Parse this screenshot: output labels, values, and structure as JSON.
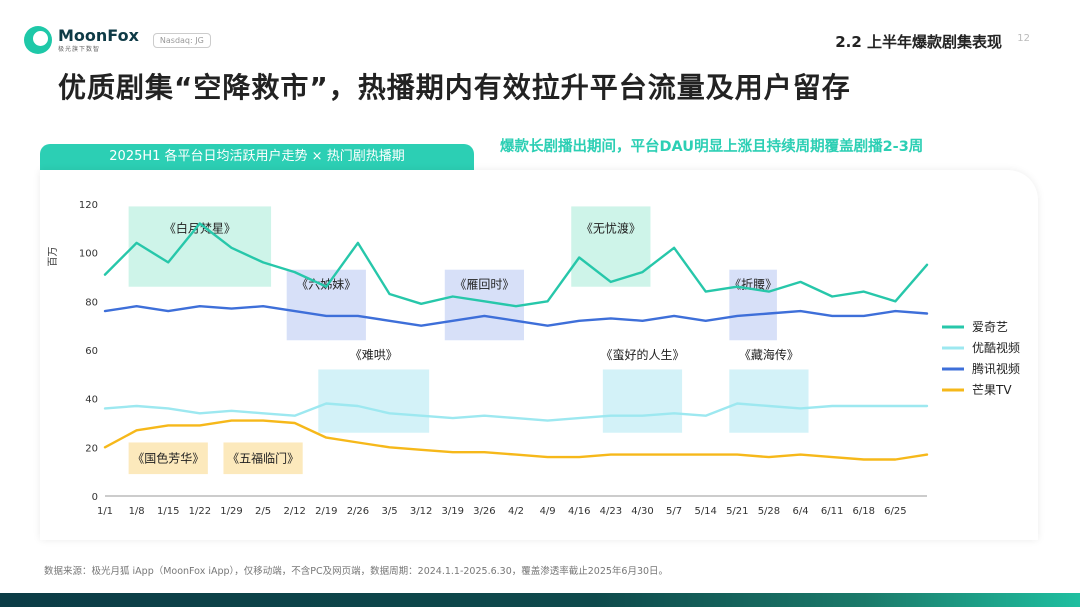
{
  "header": {
    "logo_name": "MoonFox",
    "logo_slogan": "极光旗下数智",
    "nasdaq": "Nasdaq: JG",
    "section_title": "2.2 上半年爆款剧集表现",
    "page_num": "12"
  },
  "main_title": "优质剧集“空降救市”，热播期内有效拉升平台流量及用户留存",
  "chart_tab_title": "2025H1 各平台日均活跃用户走势 × 热门剧热播期",
  "chart_note": "爆款长剧播出期间，平台DAU明显上涨且持续周期覆盖剧播2-3周",
  "source": "数据来源：极光月狐 iApp（MoonFox iApp），仅移动端，不含PC及网页端，数据周期：2024.1.1-2025.6.30，覆盖渗透率截止2025年6月30日。",
  "colors": {
    "iqiyi": "#27c7aa",
    "youku": "#9de8f0",
    "tencent": "#3e6fd9",
    "mango": "#f6b81a",
    "accent": "#2ccfb4"
  },
  "chart_data": {
    "type": "line",
    "ylabel": "百万",
    "ylim": [
      0,
      120
    ],
    "yticks": [
      0,
      20,
      40,
      60,
      80,
      100,
      120
    ],
    "x": [
      "1/1",
      "1/8",
      "1/15",
      "1/22",
      "1/29",
      "2/5",
      "2/12",
      "2/19",
      "2/26",
      "3/5",
      "3/12",
      "3/19",
      "3/26",
      "4/2",
      "4/9",
      "4/16",
      "4/23",
      "4/30",
      "5/7",
      "5/14",
      "5/21",
      "5/28",
      "6/4",
      "6/11",
      "6/18",
      "6/25",
      "6/30"
    ],
    "xticks": [
      "1/1",
      "1/8",
      "1/15",
      "1/22",
      "1/29",
      "2/5",
      "2/12",
      "2/19",
      "2/26",
      "3/5",
      "3/12",
      "3/19",
      "3/26",
      "4/2",
      "4/9",
      "4/16",
      "4/23",
      "4/30",
      "5/7",
      "5/14",
      "5/21",
      "5/28",
      "6/4",
      "6/11",
      "6/18",
      "6/25"
    ],
    "legend_position": "right",
    "series": [
      {
        "name": "爱奇艺",
        "values": [
          91,
          104,
          96,
          112,
          102,
          96,
          92,
          86,
          104,
          83,
          79,
          82,
          80,
          78,
          80,
          98,
          88,
          92,
          102,
          84,
          86,
          84,
          88,
          82,
          84,
          80,
          95
        ]
      },
      {
        "name": "优酷视频",
        "values": [
          36,
          37,
          36,
          34,
          35,
          34,
          33,
          38,
          37,
          34,
          33,
          32,
          33,
          32,
          31,
          32,
          33,
          33,
          34,
          33,
          38,
          37,
          36,
          37,
          37,
          37,
          37
        ]
      },
      {
        "name": "腾讯视频",
        "values": [
          76,
          78,
          76,
          78,
          77,
          78,
          76,
          74,
          74,
          72,
          70,
          72,
          74,
          72,
          70,
          72,
          73,
          72,
          74,
          72,
          74,
          75,
          76,
          74,
          74,
          76,
          75
        ]
      },
      {
        "name": "芒果TV",
        "values": [
          20,
          27,
          29,
          29,
          31,
          31,
          30,
          24,
          22,
          20,
          19,
          18,
          18,
          17,
          16,
          16,
          17,
          17,
          17,
          17,
          17,
          16,
          17,
          16,
          15,
          15,
          17
        ]
      }
    ],
    "dramas": [
      {
        "label": "《白月梵星》",
        "start": "1/8",
        "end": "2/5",
        "band": "top"
      },
      {
        "label": "《六姊妹》",
        "start": "2/12",
        "end": "2/26",
        "band": "mid"
      },
      {
        "label": "《雁回时》",
        "start": "3/19",
        "end": "4/2",
        "band": "mid"
      },
      {
        "label": "《无忧渡》",
        "start": "4/16",
        "end": "4/30",
        "band": "top"
      },
      {
        "label": "《折腰》",
        "start": "5/21",
        "end": "5/28",
        "band": "mid"
      },
      {
        "label": "《难哄》",
        "start": "2/19",
        "end": "3/12",
        "band": "low"
      },
      {
        "label": "《蛮好的人生》",
        "start": "4/23",
        "end": "5/7",
        "band": "low"
      },
      {
        "label": "《藏海传》",
        "start": "5/21",
        "end": "6/4",
        "band": "low"
      },
      {
        "label": "《国色芳华》",
        "start": "1/8",
        "end": "1/22",
        "band": "bottom"
      },
      {
        "label": "《五福临门》",
        "start": "1/29",
        "end": "2/12",
        "band": "bottom"
      }
    ]
  }
}
